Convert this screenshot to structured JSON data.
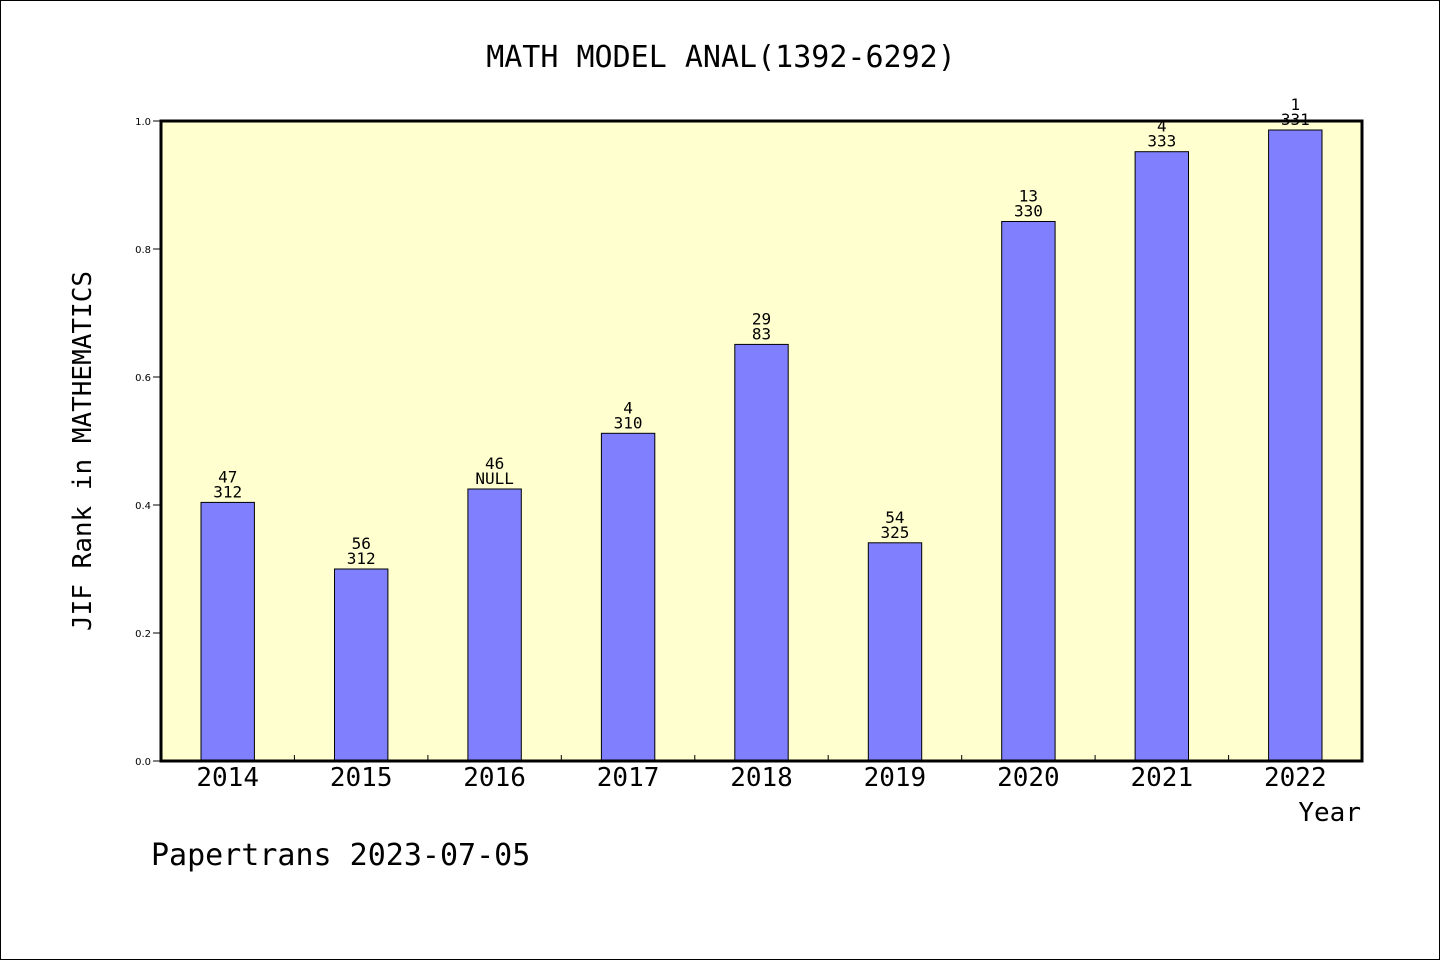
{
  "chart_data": {
    "type": "bar",
    "title": "MATH MODEL ANAL(1392-6292)",
    "xlabel": "Year",
    "ylabel": "JIF Rank in MATHEMATICS",
    "categories": [
      "2014",
      "2015",
      "2016",
      "2017",
      "2018",
      "2019",
      "2020",
      "2021",
      "2022"
    ],
    "values": [
      0.404,
      0.3,
      0.425,
      0.512,
      0.651,
      0.341,
      0.843,
      0.952,
      0.986
    ],
    "labels_top": [
      "47",
      "56",
      "46",
      "4",
      "29",
      "54",
      "13",
      "4",
      "1"
    ],
    "labels_bottom": [
      "312",
      "312",
      "NULL",
      "310",
      "83",
      "325",
      "330",
      "333",
      "331"
    ],
    "ylim": [
      0,
      1.0
    ],
    "yticks": [
      "0.0",
      "0.2",
      "0.4",
      "0.6",
      "0.8",
      "1.0"
    ],
    "grid": false,
    "legend": "none",
    "colors": {
      "bar": "#8080ff",
      "plot_background": "#ffffd0",
      "axis": "#000000"
    }
  },
  "footer": {
    "text": "Papertrans 2023-07-05"
  }
}
